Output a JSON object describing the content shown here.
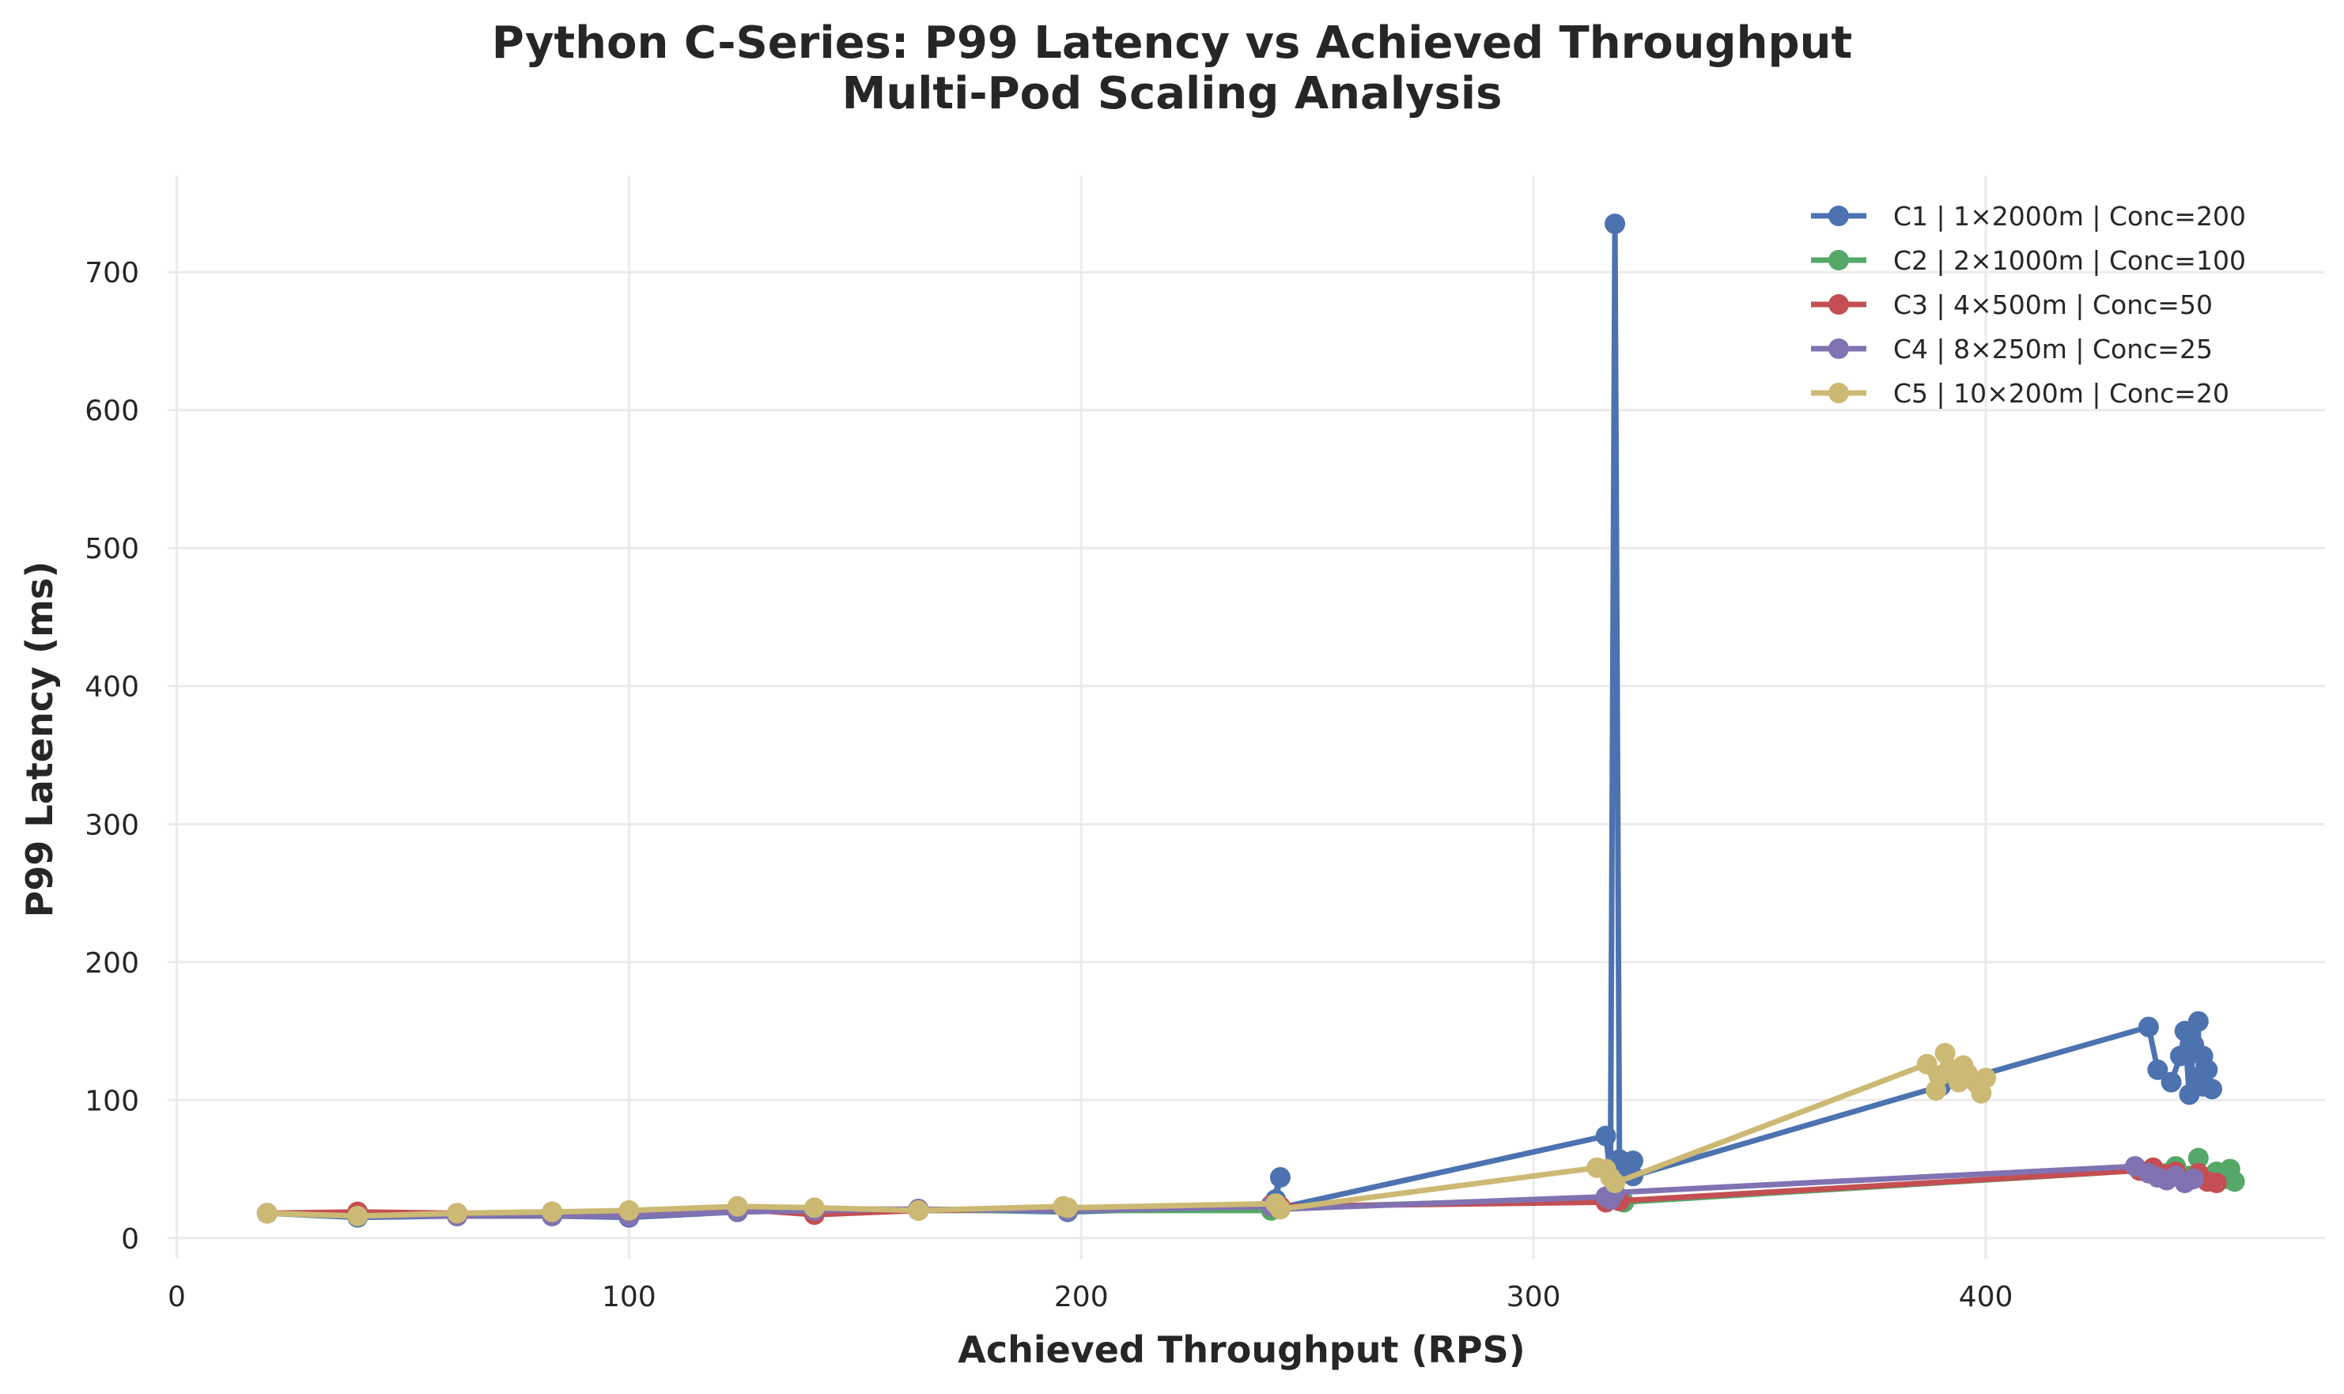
{
  "chart_data": {
    "type": "line",
    "title_lines": [
      "Python C-Series: P99 Latency vs Achieved Throughput",
      "Multi-Pod Scaling Analysis"
    ],
    "xlabel": "Achieved Throughput (RPS)",
    "ylabel": "P99 Latency (ms)",
    "xlim": [
      -2,
      475
    ],
    "ylim": [
      -15,
      770
    ],
    "xticks": [
      0,
      100,
      200,
      300,
      400
    ],
    "yticks": [
      0,
      100,
      200,
      300,
      400,
      500,
      600,
      700
    ],
    "grid": true,
    "legend_position": "top-right",
    "series": [
      {
        "name": "C1 | 1×2000m | Conc=200",
        "color": "#4c72b0",
        "points": [
          [
            20,
            18
          ],
          [
            40,
            15
          ],
          [
            62,
            16
          ],
          [
            83,
            16
          ],
          [
            100,
            15
          ],
          [
            124,
            19
          ],
          [
            141,
            21
          ],
          [
            164,
            21
          ],
          [
            197,
            19
          ],
          [
            242,
            23
          ],
          [
            244,
            44
          ],
          [
            243,
            28
          ],
          [
            244,
            22
          ],
          [
            316,
            74
          ],
          [
            317,
            45
          ],
          [
            318,
            735
          ],
          [
            319,
            57
          ],
          [
            321,
            50
          ],
          [
            322,
            56
          ],
          [
            322,
            45
          ],
          [
            390,
            110
          ],
          [
            436,
            153
          ],
          [
            438,
            122
          ],
          [
            441,
            113
          ],
          [
            443,
            132
          ],
          [
            444,
            150
          ],
          [
            445,
            104
          ],
          [
            446,
            140
          ],
          [
            447,
            157
          ],
          [
            447,
            117
          ],
          [
            448,
            110
          ],
          [
            448,
            132
          ],
          [
            449,
            122
          ],
          [
            450,
            108
          ]
        ]
      },
      {
        "name": "C2 | 2×1000m | Conc=100",
        "color": "#55a868",
        "points": [
          [
            20,
            18
          ],
          [
            40,
            16
          ],
          [
            62,
            17
          ],
          [
            83,
            17
          ],
          [
            100,
            17
          ],
          [
            124,
            19
          ],
          [
            141,
            20
          ],
          [
            164,
            20
          ],
          [
            197,
            20
          ],
          [
            242,
            20
          ],
          [
            244,
            22
          ],
          [
            317,
            29
          ],
          [
            318,
            31
          ],
          [
            319,
            27
          ],
          [
            320,
            26
          ],
          [
            434,
            49
          ],
          [
            440,
            47
          ],
          [
            442,
            52
          ],
          [
            445,
            45
          ],
          [
            447,
            58
          ],
          [
            449,
            44
          ],
          [
            451,
            48
          ],
          [
            453,
            43
          ],
          [
            454,
            50
          ],
          [
            455,
            41
          ]
        ]
      },
      {
        "name": "C3 | 4×500m | Conc=50",
        "color": "#c44e52",
        "points": [
          [
            20,
            18
          ],
          [
            40,
            19
          ],
          [
            62,
            18
          ],
          [
            83,
            19
          ],
          [
            100,
            19
          ],
          [
            124,
            21
          ],
          [
            141,
            17
          ],
          [
            164,
            20
          ],
          [
            197,
            21
          ],
          [
            242,
            24
          ],
          [
            244,
            23
          ],
          [
            316,
            26
          ],
          [
            318,
            28
          ],
          [
            319,
            27
          ],
          [
            434,
            49
          ],
          [
            437,
            51
          ],
          [
            440,
            46
          ],
          [
            442,
            48
          ],
          [
            445,
            42
          ],
          [
            447,
            47
          ],
          [
            449,
            41
          ],
          [
            451,
            40
          ]
        ]
      },
      {
        "name": "C4 | 8×250m | Conc=25",
        "color": "#8172b2",
        "points": [
          [
            20,
            18
          ],
          [
            40,
            16
          ],
          [
            62,
            16
          ],
          [
            83,
            16
          ],
          [
            100,
            16
          ],
          [
            124,
            19
          ],
          [
            141,
            20
          ],
          [
            164,
            21
          ],
          [
            197,
            20
          ],
          [
            242,
            23
          ],
          [
            244,
            21
          ],
          [
            316,
            30
          ],
          [
            317,
            28
          ],
          [
            318,
            33
          ],
          [
            433,
            52
          ],
          [
            436,
            47
          ],
          [
            438,
            44
          ],
          [
            440,
            42
          ],
          [
            442,
            45
          ],
          [
            444,
            40
          ],
          [
            446,
            43
          ]
        ]
      },
      {
        "name": "C5 | 10×200m | Conc=20",
        "color": "#ccb974",
        "points": [
          [
            20,
            18
          ],
          [
            40,
            16
          ],
          [
            62,
            18
          ],
          [
            83,
            19
          ],
          [
            100,
            20
          ],
          [
            124,
            23
          ],
          [
            141,
            22
          ],
          [
            164,
            20
          ],
          [
            196,
            23
          ],
          [
            197,
            22
          ],
          [
            243,
            25
          ],
          [
            244,
            21
          ],
          [
            314,
            51
          ],
          [
            316,
            50
          ],
          [
            317,
            44
          ],
          [
            318,
            40
          ],
          [
            387,
            126
          ],
          [
            389,
            107
          ],
          [
            390,
            118
          ],
          [
            391,
            134
          ],
          [
            393,
            122
          ],
          [
            394,
            113
          ],
          [
            395,
            125
          ],
          [
            396,
            119
          ],
          [
            398,
            112
          ],
          [
            399,
            105
          ],
          [
            400,
            116
          ]
        ]
      }
    ]
  }
}
